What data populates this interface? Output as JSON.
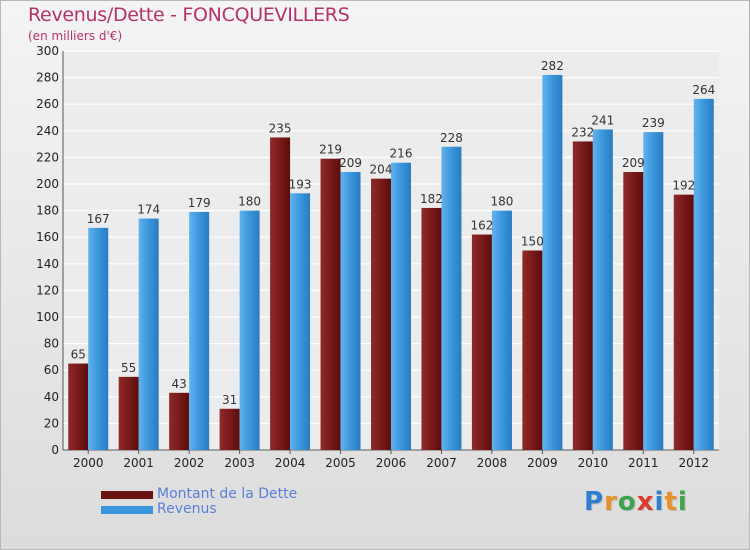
{
  "chart_data": {
    "type": "bar",
    "title": "Revenus/Dette - FONCQUEVILLERS",
    "subtitle": "(en milliers d'€)",
    "categories": [
      "2000",
      "2001",
      "2002",
      "2003",
      "2004",
      "2005",
      "2006",
      "2007",
      "2008",
      "2009",
      "2010",
      "2011",
      "2012"
    ],
    "series": [
      {
        "name": "Montant de la Dette",
        "color": "#7a1a1a",
        "values": [
          65,
          55,
          43,
          31,
          235,
          219,
          204,
          182,
          162,
          150,
          232,
          209,
          192
        ]
      },
      {
        "name": "Revenus",
        "color": "#3a96dc",
        "values": [
          167,
          174,
          179,
          180,
          193,
          209,
          216,
          228,
          180,
          282,
          241,
          239,
          264
        ]
      }
    ],
    "ylim": [
      0,
      300
    ],
    "yticks": [
      0,
      20,
      40,
      60,
      80,
      100,
      120,
      140,
      160,
      180,
      200,
      220,
      240,
      260,
      280,
      300
    ],
    "grid": true,
    "xlabel": "",
    "ylabel": "",
    "legend_position": "bottom-left"
  },
  "logo": {
    "letters": [
      {
        "ch": "P",
        "color": "#2f7fd0"
      },
      {
        "ch": "r",
        "color": "#e8902a"
      },
      {
        "ch": "o",
        "color": "#3fa34d"
      },
      {
        "ch": "x",
        "color": "#e03a2f"
      },
      {
        "ch": "i",
        "color": "#2f7fd0"
      },
      {
        "ch": "t",
        "color": "#e8902a"
      },
      {
        "ch": "i",
        "color": "#3fa34d"
      }
    ]
  }
}
